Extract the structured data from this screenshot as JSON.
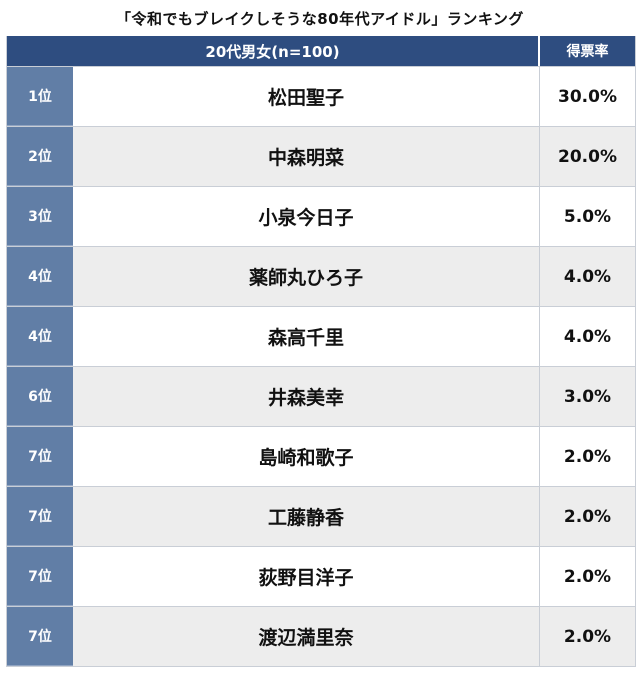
{
  "title": "「令和でもブレイクしそうな80年代アイドル」ランキング",
  "table": {
    "header": {
      "group": "20代男女(n=100)",
      "rate": "得票率"
    },
    "rows": [
      {
        "rank": "1位",
        "name": "松田聖子",
        "rate": "30.0%"
      },
      {
        "rank": "2位",
        "name": "中森明菜",
        "rate": "20.0%"
      },
      {
        "rank": "3位",
        "name": "小泉今日子",
        "rate": "5.0%"
      },
      {
        "rank": "4位",
        "name": "薬師丸ひろ子",
        "rate": "4.0%"
      },
      {
        "rank": "4位",
        "name": "森高千里",
        "rate": "4.0%"
      },
      {
        "rank": "6位",
        "name": "井森美幸",
        "rate": "3.0%"
      },
      {
        "rank": "7位",
        "name": "島崎和歌子",
        "rate": "2.0%"
      },
      {
        "rank": "7位",
        "name": "工藤静香",
        "rate": "2.0%"
      },
      {
        "rank": "7位",
        "name": "荻野目洋子",
        "rate": "2.0%"
      },
      {
        "rank": "7位",
        "name": "渡辺満里奈",
        "rate": "2.0%"
      }
    ]
  }
}
